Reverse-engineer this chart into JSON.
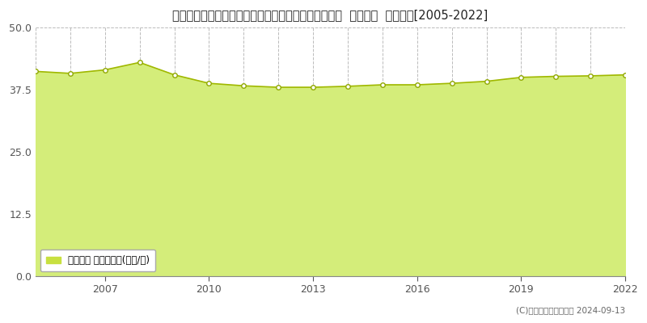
{
  "title": "東京都西多摩郡瑞穂町大字箱根ケ崎字狭山２９５番４  地価公示  地価推移[2005-2022]",
  "years": [
    2005,
    2006,
    2007,
    2008,
    2008.5,
    2009,
    2009.5,
    2010,
    2010.5,
    2011,
    2011.5,
    2012,
    2012.5,
    2013,
    2013.5,
    2014,
    2014.5,
    2015,
    2015.5,
    2016,
    2016.5,
    2017,
    2017.5,
    2018,
    2018.5,
    2019,
    2019.5,
    2020,
    2020.5,
    2021,
    2022
  ],
  "data_years": [
    2005,
    2006,
    2007,
    2008,
    2009,
    2010,
    2011,
    2012,
    2013,
    2014,
    2015,
    2016,
    2017,
    2018,
    2019,
    2020,
    2021,
    2022
  ],
  "values": [
    41.2,
    40.8,
    41.5,
    43.0,
    40.5,
    38.8,
    38.3,
    38.0,
    38.0,
    38.2,
    38.5,
    38.5,
    38.8,
    39.2,
    40.0,
    40.2,
    40.3,
    40.5
  ],
  "ylim": [
    0,
    50
  ],
  "yticks": [
    0,
    12.5,
    25,
    37.5,
    50
  ],
  "xticks": [
    2007,
    2010,
    2013,
    2016,
    2019,
    2022
  ],
  "fill_color": "#d4ed7a",
  "fill_alpha": 1.0,
  "line_color": "#a0b800",
  "line_width": 1.2,
  "marker_color": "#ffffff",
  "marker_edge_color": "#90a800",
  "marker_size": 4,
  "background_color": "#ffffff",
  "plot_bg_color": "#ffffff",
  "grid_color": "#bbbbbb",
  "legend_label": "地価公示 平均坪単価(万円/坪)",
  "legend_color": "#c8e040",
  "copyright_text": "(C)土地価格ドットコム 2024-09-13",
  "title_fontsize": 10.5,
  "tick_fontsize": 9,
  "legend_fontsize": 8.5,
  "copyright_fontsize": 7.5
}
